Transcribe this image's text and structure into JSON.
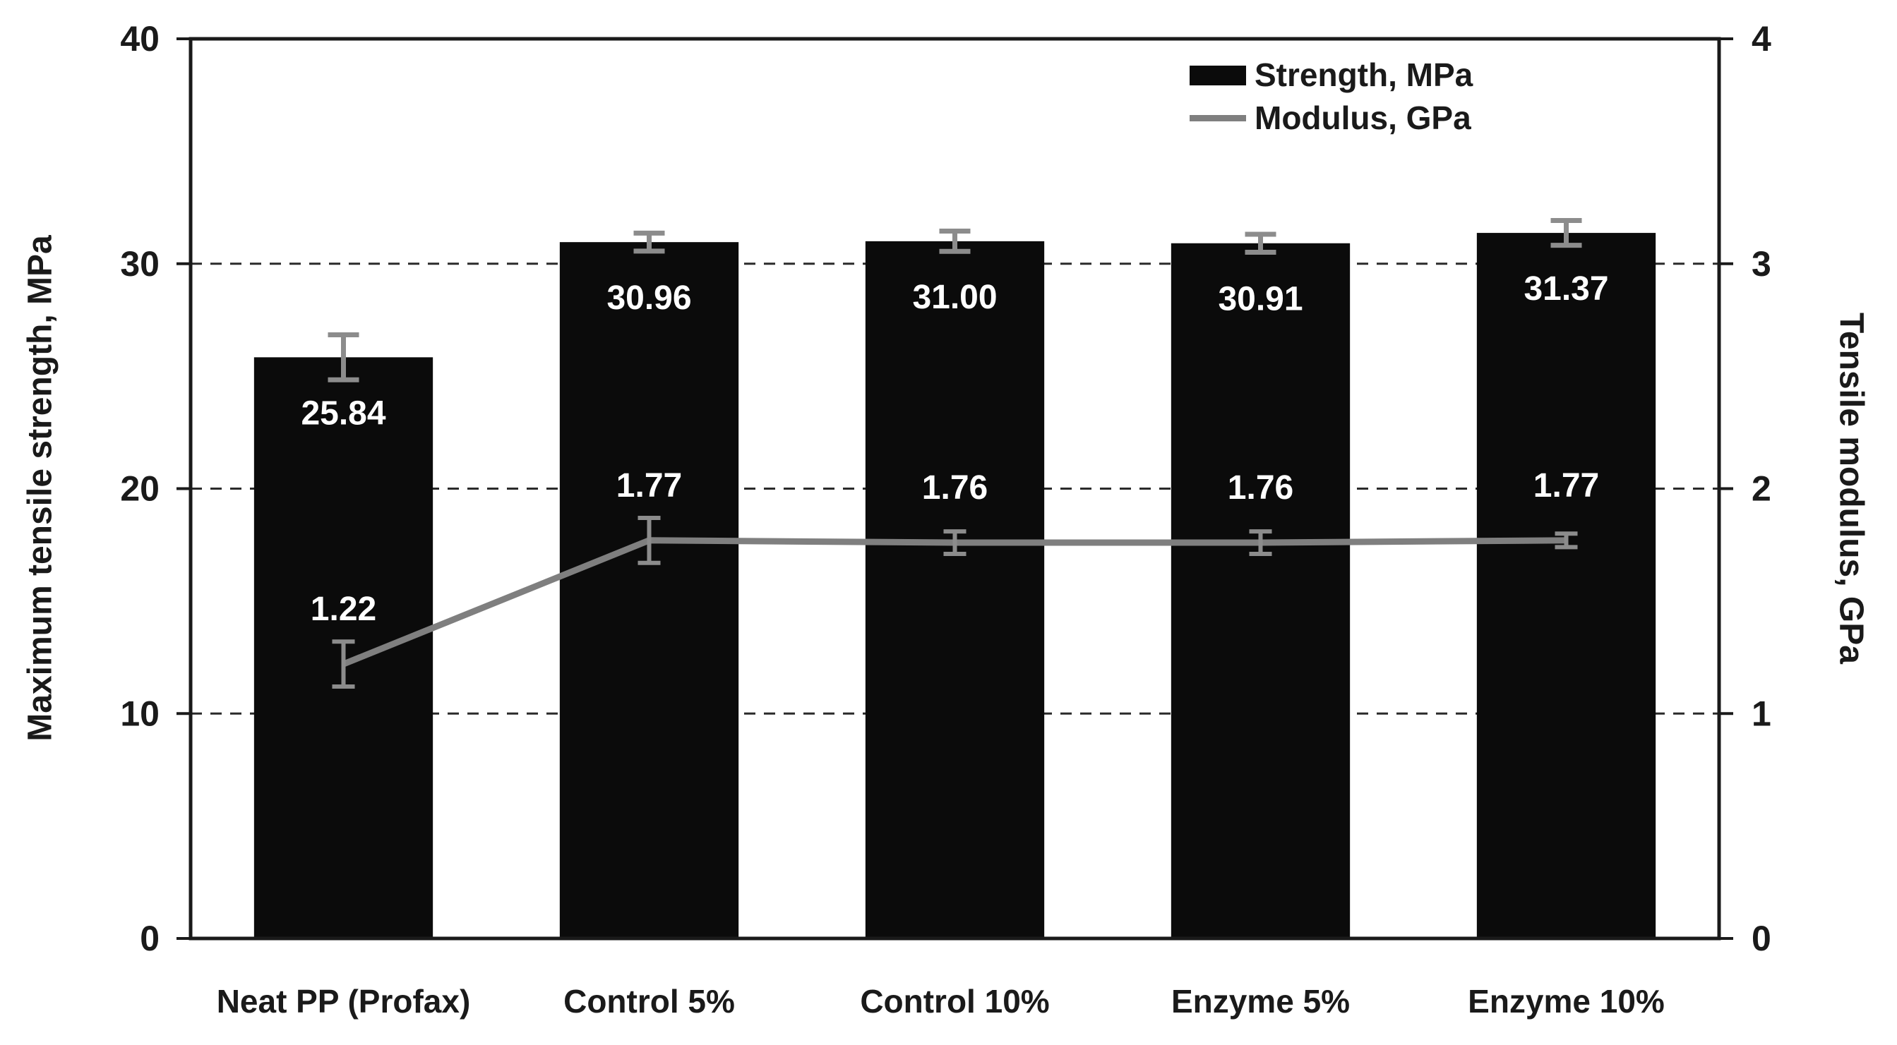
{
  "chart_data": {
    "type": "bar",
    "subtype": "bar+line dual axis",
    "categories": [
      "Neat PP (Profax)",
      "Control 5%",
      "Control 10%",
      "Enzyme 5%",
      "Enzyme 10%"
    ],
    "series": [
      {
        "name": "Strength, MPa",
        "type": "bar",
        "axis": "left",
        "values": [
          25.84,
          30.96,
          31.0,
          30.91,
          31.37
        ],
        "labels": [
          "25.84",
          "30.96",
          "31.00",
          "30.91",
          "31.37"
        ],
        "errors": [
          1.0,
          0.4,
          0.45,
          0.4,
          0.55
        ],
        "color": "#0b0b0b",
        "label_color": "#ffffff"
      },
      {
        "name": "Modulus, GPa",
        "type": "line",
        "axis": "right",
        "values": [
          1.22,
          1.77,
          1.76,
          1.76,
          1.77
        ],
        "labels": [
          "1.22",
          "1.77",
          "1.76",
          "1.76",
          "1.77"
        ],
        "errors": [
          0.1,
          0.1,
          0.05,
          0.05,
          0.03
        ],
        "color": "#7f7f7f",
        "label_color": "#ffffff"
      }
    ],
    "left_axis": {
      "title": "Maximum tensile strength, MPa",
      "min": 0,
      "max": 40,
      "ticks": [
        0,
        10,
        20,
        30,
        40
      ]
    },
    "right_axis": {
      "title": "Tensile modulus, GPa",
      "min": 0,
      "max": 4,
      "ticks": [
        0,
        1,
        2,
        3,
        4
      ]
    },
    "gridlines_left": [
      10,
      20,
      30
    ],
    "grid_style": "dashed",
    "error_bar_color": "#8c8c8c",
    "frame_color": "#1a1a1a",
    "legend_position": "top-right"
  }
}
